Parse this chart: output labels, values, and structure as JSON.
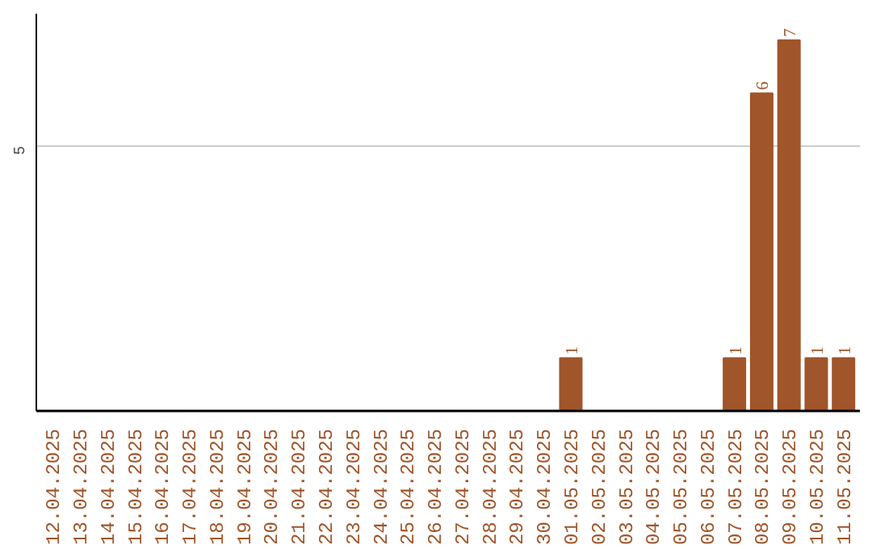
{
  "chart_data": {
    "type": "bar",
    "ylim": [
      0,
      7.5
    ],
    "yticks": [
      5
    ],
    "grid": "y",
    "data_labels": true,
    "categories": [
      "12.04.2025",
      "13.04.2025",
      "14.04.2025",
      "15.04.2025",
      "16.04.2025",
      "17.04.2025",
      "18.04.2025",
      "19.04.2025",
      "20.04.2025",
      "21.04.2025",
      "22.04.2025",
      "23.04.2025",
      "24.04.2025",
      "25.04.2025",
      "26.04.2025",
      "27.04.2025",
      "28.04.2025",
      "29.04.2025",
      "30.04.2025",
      "01.05.2025",
      "02.05.2025",
      "03.05.2025",
      "04.05.2025",
      "05.05.2025",
      "06.05.2025",
      "07.05.2025",
      "08.05.2025",
      "09.05.2025",
      "10.05.2025",
      "11.05.2025"
    ],
    "values": [
      null,
      null,
      null,
      null,
      null,
      null,
      null,
      null,
      null,
      null,
      null,
      null,
      null,
      null,
      null,
      null,
      null,
      null,
      null,
      1,
      null,
      null,
      null,
      null,
      null,
      1,
      6,
      7,
      1,
      1
    ],
    "color": "#a0552a"
  }
}
